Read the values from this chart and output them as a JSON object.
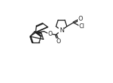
{
  "bg_color": "#ffffff",
  "line_color": "#222222",
  "line_width": 1.0,
  "text_color": "#222222",
  "fig_width": 1.64,
  "fig_height": 1.21,
  "dpi": 100,
  "xlim": [
    0,
    10
  ],
  "ylim": [
    0,
    7.5
  ]
}
